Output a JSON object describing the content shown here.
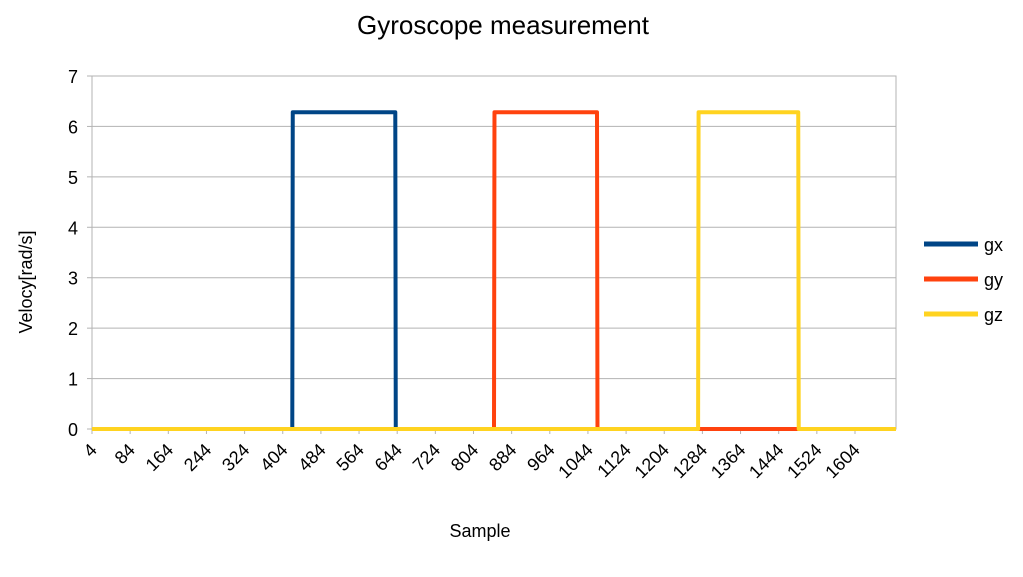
{
  "chart_data": {
    "type": "line",
    "title": "Gyroscope measurement",
    "xlabel": "Sample",
    "ylabel": "Velocy[rad/s]",
    "x": [
      4,
      424,
      425,
      640,
      641,
      847,
      848,
      1063,
      1064,
      1275,
      1276,
      1485,
      1486,
      1690
    ],
    "series": [
      {
        "name": "gx",
        "color": "#004586",
        "values": [
          0,
          0,
          6.28,
          6.28,
          0,
          0,
          0,
          0,
          0,
          0,
          0,
          0,
          0,
          0
        ]
      },
      {
        "name": "gy",
        "color": "#ff420e",
        "values": [
          0,
          0,
          0,
          0,
          0,
          0,
          6.28,
          6.28,
          0,
          0,
          0,
          0,
          0,
          0
        ]
      },
      {
        "name": "gz",
        "color": "#ffd320",
        "values": [
          0,
          0,
          0,
          0,
          0,
          0,
          0,
          0,
          0,
          0,
          6.28,
          6.28,
          0,
          0
        ]
      }
    ],
    "xlim": [
      4,
      1690
    ],
    "ylim": [
      0,
      7
    ],
    "xticks": [
      4,
      84,
      164,
      244,
      324,
      404,
      484,
      564,
      644,
      724,
      804,
      884,
      964,
      1044,
      1124,
      1204,
      1284,
      1364,
      1444,
      1524,
      1604
    ],
    "yticks": [
      0,
      1,
      2,
      3,
      4,
      5,
      6,
      7
    ],
    "grid": true,
    "legend": "right"
  }
}
